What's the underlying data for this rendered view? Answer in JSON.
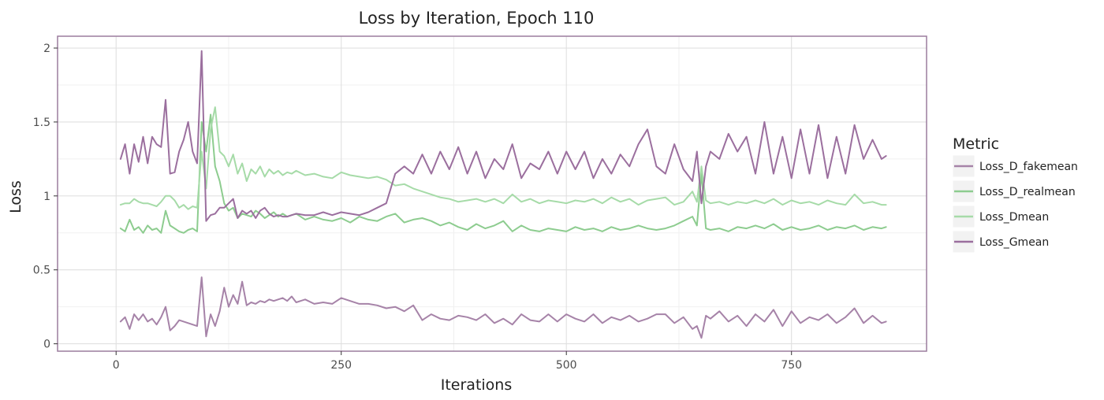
{
  "chart_data": {
    "type": "line",
    "title": "Loss by Iteration, Epoch 110",
    "xlabel": "Iterations",
    "ylabel": "Loss",
    "xlim": [
      -65,
      900
    ],
    "ylim": [
      -0.05,
      2.08
    ],
    "xticks": [
      0,
      250,
      500,
      750
    ],
    "xtick_labels": [
      "0",
      "250",
      "500",
      "750"
    ],
    "yticks": [
      0,
      0.5,
      1,
      1.5,
      2
    ],
    "ytick_labels": [
      "0",
      "0.5",
      "1",
      "1.5",
      "2"
    ],
    "grid": true,
    "legend": {
      "title": "Metric",
      "position": "right"
    },
    "series": [
      {
        "name": "Loss_D_fakemean",
        "color": "#a683a8",
        "x": [
          5,
          10,
          15,
          20,
          25,
          30,
          35,
          40,
          45,
          50,
          55,
          60,
          65,
          70,
          75,
          80,
          85,
          90,
          95,
          100,
          105,
          110,
          115,
          120,
          125,
          130,
          135,
          140,
          145,
          150,
          155,
          160,
          165,
          170,
          175,
          180,
          185,
          190,
          195,
          200,
          210,
          220,
          230,
          240,
          250,
          260,
          270,
          280,
          290,
          300,
          310,
          320,
          330,
          340,
          350,
          360,
          370,
          380,
          390,
          400,
          410,
          420,
          430,
          440,
          450,
          460,
          470,
          480,
          490,
          500,
          510,
          520,
          530,
          540,
          550,
          560,
          570,
          580,
          590,
          600,
          610,
          620,
          630,
          640,
          645,
          650,
          655,
          660,
          670,
          680,
          690,
          700,
          710,
          720,
          730,
          740,
          750,
          760,
          770,
          780,
          790,
          800,
          810,
          820,
          830,
          840,
          850,
          855
        ],
        "y": [
          0.15,
          0.18,
          0.1,
          0.2,
          0.16,
          0.2,
          0.15,
          0.17,
          0.13,
          0.18,
          0.25,
          0.09,
          0.12,
          0.16,
          0.15,
          0.14,
          0.13,
          0.12,
          0.45,
          0.05,
          0.2,
          0.12,
          0.22,
          0.38,
          0.25,
          0.33,
          0.27,
          0.42,
          0.26,
          0.28,
          0.27,
          0.29,
          0.28,
          0.3,
          0.29,
          0.3,
          0.31,
          0.29,
          0.32,
          0.28,
          0.3,
          0.27,
          0.28,
          0.27,
          0.31,
          0.29,
          0.27,
          0.27,
          0.26,
          0.24,
          0.25,
          0.22,
          0.26,
          0.16,
          0.2,
          0.17,
          0.16,
          0.19,
          0.18,
          0.16,
          0.2,
          0.14,
          0.17,
          0.13,
          0.2,
          0.16,
          0.15,
          0.2,
          0.15,
          0.2,
          0.17,
          0.15,
          0.2,
          0.14,
          0.18,
          0.16,
          0.19,
          0.15,
          0.17,
          0.2,
          0.2,
          0.14,
          0.18,
          0.1,
          0.12,
          0.04,
          0.19,
          0.17,
          0.22,
          0.15,
          0.19,
          0.12,
          0.2,
          0.15,
          0.23,
          0.12,
          0.22,
          0.14,
          0.18,
          0.16,
          0.2,
          0.14,
          0.18,
          0.24,
          0.14,
          0.19,
          0.14,
          0.15
        ]
      },
      {
        "name": "Loss_D_realmean",
        "color": "#8dcc8f",
        "x": [
          5,
          10,
          15,
          20,
          25,
          30,
          35,
          40,
          45,
          50,
          55,
          60,
          65,
          70,
          75,
          80,
          85,
          90,
          95,
          100,
          105,
          110,
          115,
          120,
          125,
          130,
          135,
          140,
          145,
          150,
          155,
          160,
          165,
          170,
          175,
          180,
          185,
          190,
          195,
          200,
          210,
          220,
          230,
          240,
          250,
          260,
          270,
          280,
          290,
          300,
          310,
          320,
          330,
          340,
          350,
          360,
          370,
          380,
          390,
          400,
          410,
          420,
          430,
          440,
          450,
          460,
          470,
          480,
          490,
          500,
          510,
          520,
          530,
          540,
          550,
          560,
          570,
          580,
          590,
          600,
          610,
          620,
          630,
          640,
          645,
          650,
          655,
          660,
          670,
          680,
          690,
          700,
          710,
          720,
          730,
          740,
          750,
          760,
          770,
          780,
          790,
          800,
          810,
          820,
          830,
          840,
          850,
          855
        ],
        "y": [
          0.78,
          0.76,
          0.84,
          0.77,
          0.79,
          0.75,
          0.8,
          0.77,
          0.78,
          0.75,
          0.9,
          0.8,
          0.78,
          0.76,
          0.75,
          0.77,
          0.78,
          0.76,
          1.5,
          1.3,
          1.55,
          1.2,
          1.1,
          0.95,
          0.9,
          0.92,
          0.85,
          0.88,
          0.87,
          0.86,
          0.9,
          0.88,
          0.85,
          0.87,
          0.89,
          0.86,
          0.88,
          0.86,
          0.87,
          0.88,
          0.84,
          0.86,
          0.84,
          0.83,
          0.85,
          0.82,
          0.86,
          0.84,
          0.83,
          0.86,
          0.88,
          0.82,
          0.84,
          0.85,
          0.83,
          0.8,
          0.82,
          0.79,
          0.77,
          0.81,
          0.78,
          0.8,
          0.83,
          0.76,
          0.8,
          0.77,
          0.76,
          0.78,
          0.77,
          0.76,
          0.79,
          0.77,
          0.78,
          0.76,
          0.79,
          0.77,
          0.78,
          0.8,
          0.78,
          0.77,
          0.78,
          0.8,
          0.83,
          0.86,
          0.8,
          1.15,
          0.78,
          0.77,
          0.78,
          0.76,
          0.79,
          0.78,
          0.8,
          0.78,
          0.81,
          0.77,
          0.79,
          0.77,
          0.78,
          0.8,
          0.77,
          0.79,
          0.78,
          0.8,
          0.77,
          0.79,
          0.78,
          0.79
        ]
      },
      {
        "name": "Loss_Dmean",
        "color": "#a6dba8",
        "x": [
          5,
          10,
          15,
          20,
          25,
          30,
          35,
          40,
          45,
          50,
          55,
          60,
          65,
          70,
          75,
          80,
          85,
          90,
          95,
          100,
          105,
          110,
          115,
          120,
          125,
          130,
          135,
          140,
          145,
          150,
          155,
          160,
          165,
          170,
          175,
          180,
          185,
          190,
          195,
          200,
          210,
          220,
          230,
          240,
          250,
          260,
          270,
          280,
          290,
          300,
          310,
          320,
          330,
          340,
          350,
          360,
          370,
          380,
          390,
          400,
          410,
          420,
          430,
          440,
          450,
          460,
          470,
          480,
          490,
          500,
          510,
          520,
          530,
          540,
          550,
          560,
          570,
          580,
          590,
          600,
          610,
          620,
          630,
          640,
          645,
          650,
          655,
          660,
          670,
          680,
          690,
          700,
          710,
          720,
          730,
          740,
          750,
          760,
          770,
          780,
          790,
          800,
          810,
          820,
          830,
          840,
          850,
          855
        ],
        "y": [
          0.94,
          0.95,
          0.95,
          0.98,
          0.96,
          0.95,
          0.95,
          0.94,
          0.93,
          0.96,
          1.0,
          1.0,
          0.97,
          0.92,
          0.94,
          0.91,
          0.93,
          0.92,
          1.3,
          1.05,
          1.45,
          1.6,
          1.3,
          1.27,
          1.2,
          1.28,
          1.15,
          1.22,
          1.1,
          1.18,
          1.15,
          1.2,
          1.13,
          1.18,
          1.15,
          1.17,
          1.14,
          1.16,
          1.15,
          1.17,
          1.14,
          1.15,
          1.13,
          1.12,
          1.16,
          1.14,
          1.13,
          1.12,
          1.13,
          1.11,
          1.07,
          1.08,
          1.05,
          1.03,
          1.01,
          0.99,
          0.98,
          0.96,
          0.97,
          0.98,
          0.96,
          0.98,
          0.95,
          1.01,
          0.96,
          0.98,
          0.95,
          0.97,
          0.96,
          0.95,
          0.97,
          0.96,
          0.98,
          0.95,
          0.99,
          0.96,
          0.98,
          0.94,
          0.97,
          0.98,
          0.99,
          0.94,
          0.96,
          1.03,
          0.96,
          1.2,
          0.97,
          0.95,
          0.96,
          0.94,
          0.96,
          0.95,
          0.97,
          0.95,
          0.98,
          0.94,
          0.97,
          0.95,
          0.96,
          0.94,
          0.97,
          0.95,
          0.94,
          1.01,
          0.95,
          0.96,
          0.94,
          0.94
        ]
      },
      {
        "name": "Loss_Gmean",
        "color": "#9b6f9e",
        "x": [
          5,
          10,
          15,
          20,
          25,
          30,
          35,
          40,
          45,
          50,
          55,
          60,
          65,
          70,
          75,
          80,
          85,
          90,
          95,
          100,
          105,
          110,
          115,
          120,
          125,
          130,
          135,
          140,
          145,
          150,
          155,
          160,
          165,
          170,
          175,
          180,
          185,
          190,
          195,
          200,
          210,
          220,
          230,
          240,
          250,
          260,
          270,
          280,
          290,
          300,
          310,
          320,
          330,
          340,
          350,
          360,
          370,
          380,
          390,
          400,
          410,
          420,
          430,
          440,
          450,
          460,
          470,
          480,
          490,
          500,
          510,
          520,
          530,
          540,
          550,
          560,
          570,
          580,
          590,
          600,
          610,
          620,
          630,
          640,
          645,
          650,
          655,
          660,
          670,
          680,
          690,
          700,
          710,
          720,
          730,
          740,
          750,
          760,
          770,
          780,
          790,
          800,
          810,
          820,
          830,
          840,
          850,
          855
        ],
        "y": [
          1.25,
          1.35,
          1.15,
          1.35,
          1.23,
          1.4,
          1.22,
          1.4,
          1.35,
          1.33,
          1.65,
          1.15,
          1.16,
          1.3,
          1.38,
          1.5,
          1.3,
          1.22,
          1.98,
          0.83,
          0.87,
          0.88,
          0.92,
          0.92,
          0.95,
          0.98,
          0.85,
          0.9,
          0.88,
          0.9,
          0.85,
          0.9,
          0.92,
          0.88,
          0.86,
          0.87,
          0.86,
          0.86,
          0.87,
          0.88,
          0.87,
          0.87,
          0.89,
          0.87,
          0.89,
          0.88,
          0.87,
          0.89,
          0.92,
          0.95,
          1.15,
          1.2,
          1.15,
          1.28,
          1.15,
          1.3,
          1.18,
          1.33,
          1.15,
          1.3,
          1.12,
          1.25,
          1.18,
          1.35,
          1.12,
          1.22,
          1.18,
          1.3,
          1.15,
          1.3,
          1.18,
          1.3,
          1.12,
          1.25,
          1.15,
          1.28,
          1.2,
          1.35,
          1.45,
          1.2,
          1.15,
          1.35,
          1.18,
          1.1,
          1.3,
          0.95,
          1.2,
          1.3,
          1.25,
          1.42,
          1.3,
          1.4,
          1.15,
          1.5,
          1.15,
          1.4,
          1.12,
          1.45,
          1.15,
          1.48,
          1.12,
          1.4,
          1.15,
          1.48,
          1.25,
          1.38,
          1.25,
          1.27
        ]
      }
    ]
  }
}
